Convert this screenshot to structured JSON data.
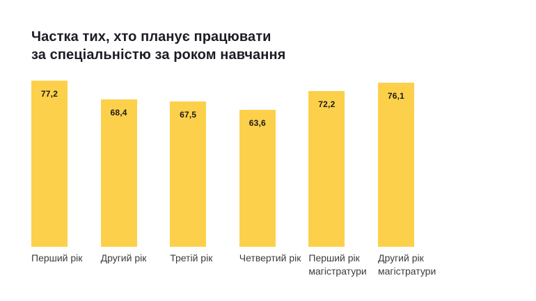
{
  "page": {
    "background": "#ffffff"
  },
  "title": "Частка тих, хто планує працювати\nза спеціальністю за роком навчання",
  "chart_data": {
    "type": "bar",
    "title": "Частка тих, хто планує працювати за спеціальністю за роком навчання",
    "categories": [
      "Перший рік",
      "Другий рік",
      "Третій рік",
      "Четвертий рік",
      "Перший рік магістратури",
      "Другий рік магістратури"
    ],
    "values": [
      77.2,
      68.4,
      67.5,
      63.6,
      72.2,
      76.1
    ],
    "value_labels": [
      "77,2",
      "68,4",
      "67,5",
      "63,6",
      "72,2",
      "76,1"
    ],
    "xlabel": "",
    "ylabel": "",
    "ylim": [
      0,
      80
    ],
    "grid": false,
    "legend": false,
    "axes_visible": false,
    "value_label_position": "inside-top",
    "bar_color": "#FCD04A",
    "title_color": "#1c1c24",
    "value_text_color": "#1a1a1a",
    "category_label_color": "#3b3b3b"
  }
}
